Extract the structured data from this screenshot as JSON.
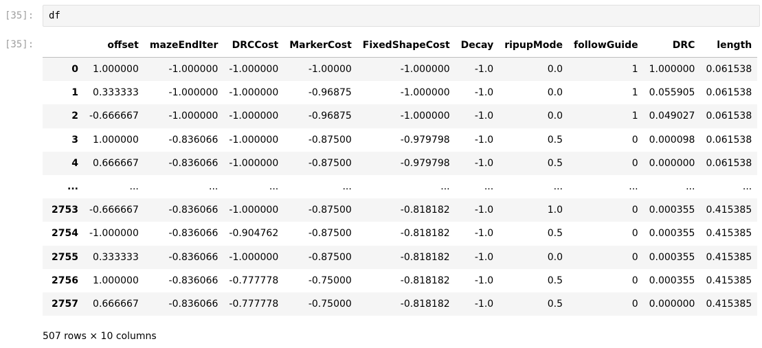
{
  "cell": {
    "input_prompt": "[35]:",
    "output_prompt": "[35]:",
    "code": "df"
  },
  "table": {
    "columns": [
      "",
      "offset",
      "mazeEndIter",
      "DRCCost",
      "MarkerCost",
      "FixedShapeCost",
      "Decay",
      "ripupMode",
      "followGuide",
      "DRC",
      "length"
    ],
    "rows": [
      [
        "0",
        "1.000000",
        "-1.000000",
        "-1.000000",
        "-1.00000",
        "-1.000000",
        "-1.0",
        "0.0",
        "1",
        "1.000000",
        "0.061538"
      ],
      [
        "1",
        "0.333333",
        "-1.000000",
        "-1.000000",
        "-0.96875",
        "-1.000000",
        "-1.0",
        "0.0",
        "1",
        "0.055905",
        "0.061538"
      ],
      [
        "2",
        "-0.666667",
        "-1.000000",
        "-1.000000",
        "-0.96875",
        "-1.000000",
        "-1.0",
        "0.0",
        "1",
        "0.049027",
        "0.061538"
      ],
      [
        "3",
        "1.000000",
        "-0.836066",
        "-1.000000",
        "-0.87500",
        "-0.979798",
        "-1.0",
        "0.5",
        "0",
        "0.000098",
        "0.061538"
      ],
      [
        "4",
        "0.666667",
        "-0.836066",
        "-1.000000",
        "-0.87500",
        "-0.979798",
        "-1.0",
        "0.5",
        "0",
        "0.000000",
        "0.061538"
      ],
      [
        "...",
        "...",
        "...",
        "...",
        "...",
        "...",
        "...",
        "...",
        "...",
        "...",
        "..."
      ],
      [
        "2753",
        "-0.666667",
        "-0.836066",
        "-1.000000",
        "-0.87500",
        "-0.818182",
        "-1.0",
        "1.0",
        "0",
        "0.000355",
        "0.415385"
      ],
      [
        "2754",
        "-1.000000",
        "-0.836066",
        "-0.904762",
        "-0.87500",
        "-0.818182",
        "-1.0",
        "0.5",
        "0",
        "0.000355",
        "0.415385"
      ],
      [
        "2755",
        "0.333333",
        "-0.836066",
        "-1.000000",
        "-0.87500",
        "-0.818182",
        "-1.0",
        "0.0",
        "0",
        "0.000355",
        "0.415385"
      ],
      [
        "2756",
        "1.000000",
        "-0.836066",
        "-0.777778",
        "-0.75000",
        "-0.818182",
        "-1.0",
        "0.5",
        "0",
        "0.000355",
        "0.415385"
      ],
      [
        "2757",
        "0.666667",
        "-0.836066",
        "-0.777778",
        "-0.75000",
        "-0.818182",
        "-1.0",
        "0.5",
        "0",
        "0.000000",
        "0.415385"
      ]
    ]
  },
  "footer": "507 rows × 10 columns"
}
